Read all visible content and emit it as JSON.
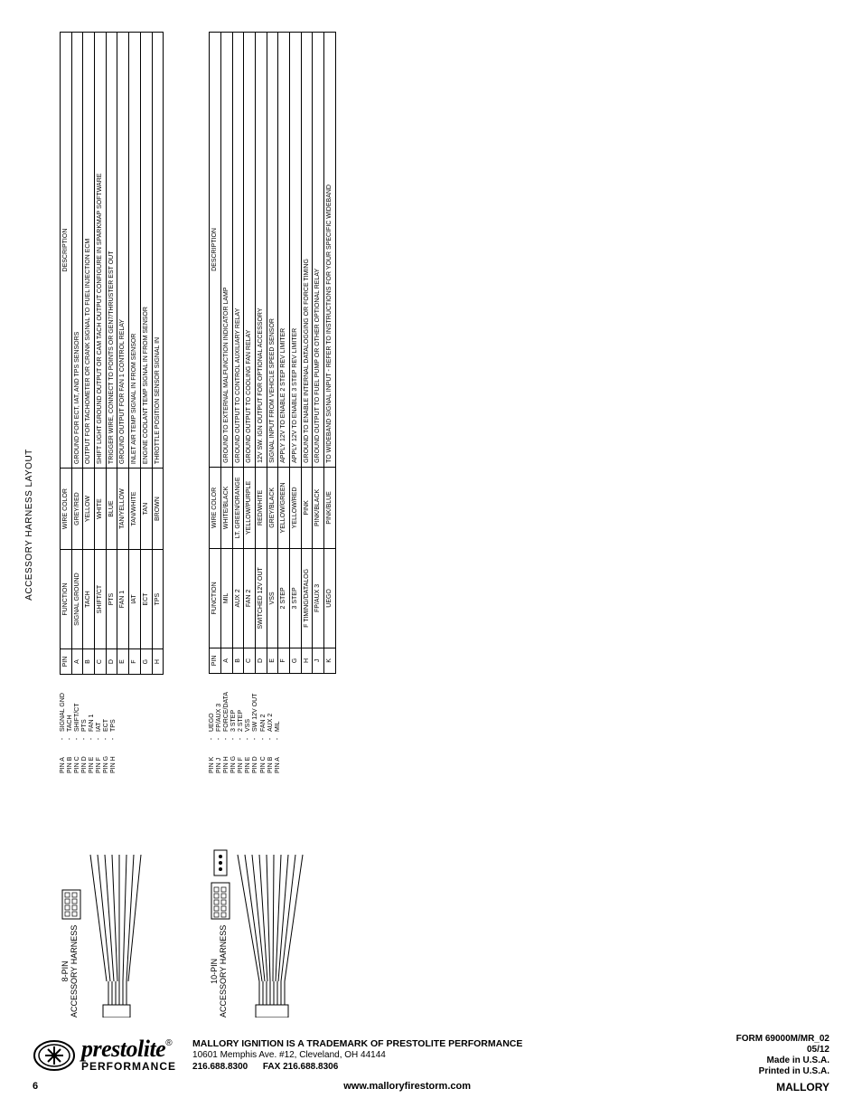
{
  "page_title": "ACCESSORY HARNESS LAYOUT",
  "colors": {
    "text": "#000000",
    "bg": "#ffffff",
    "border": "#000000"
  },
  "harness8": {
    "label_line1": "8-PIN",
    "label_line2": "ACCESSORY HARNESS",
    "legend": [
      {
        "pin": "PIN A",
        "func": "SIGNAL GND"
      },
      {
        "pin": "PIN B",
        "func": "TACH"
      },
      {
        "pin": "PIN C",
        "func": "SHIFT/CT"
      },
      {
        "pin": "PIN D",
        "func": "PTS"
      },
      {
        "pin": "PIN E",
        "func": "FAN 1"
      },
      {
        "pin": "PIN F",
        "func": "IAT"
      },
      {
        "pin": "PIN G",
        "func": "ECT"
      },
      {
        "pin": "PIN H",
        "func": "TPS"
      }
    ],
    "headers": {
      "pin": "PIN",
      "function": "FUNCTION",
      "color": "WIRE COLOR",
      "desc": "DESCRIPTION"
    },
    "rows": [
      {
        "pin": "A",
        "function": "SIGNAL GROUND",
        "color": "GREY/RED",
        "desc": "GROUND FOR ECT, IAT, AND TPS SENSORS"
      },
      {
        "pin": "B",
        "function": "TACH",
        "color": "YELLOW",
        "desc": "OUTPUT FOR TACHOMETER OR CRANK SIGNAL TO FUEL INJECTION ECM"
      },
      {
        "pin": "C",
        "function": "SHIFT/CT",
        "color": "WHITE",
        "desc": "SHIFT LIGHT GROUND OUTPUT OR CAM TACH OUTPUT CONFIGURE IN SPARKMAP SOFTWARE"
      },
      {
        "pin": "D",
        "function": "PTS",
        "color": "BLUE",
        "desc": "TRIGGER WIRE, CONNECT TO POINTS OR GEN7/THRUSTER EST OUT"
      },
      {
        "pin": "E",
        "function": "FAN 1",
        "color": "TAN/YELLOW",
        "desc": "GROUND OUTPUT FOR FAN 1 CONTROL RELAY"
      },
      {
        "pin": "F",
        "function": "IAT",
        "color": "TAN/WHITE",
        "desc": "INLET AIR TEMP SIGNAL IN FROM SENSOR"
      },
      {
        "pin": "G",
        "function": "ECT",
        "color": "TAN",
        "desc": "ENGINE COOLANT TEMP SIGNAL IN FROM SENSOR"
      },
      {
        "pin": "H",
        "function": "TPS",
        "color": "BROWN",
        "desc": "THROTTLE POSITION SENSOR SIGNAL IN"
      }
    ]
  },
  "harness10": {
    "label_line1": "10-PIN",
    "label_line2": "ACCESSORY HARNESS",
    "legend": [
      {
        "pin": "PIN K",
        "func": "UEGO"
      },
      {
        "pin": "PIN J",
        "func": "FP/AUX 3"
      },
      {
        "pin": "PIN H",
        "func": "FORCE/DATA"
      },
      {
        "pin": "PIN G",
        "func": "3 STEP"
      },
      {
        "pin": "PIN F",
        "func": "2 STEP"
      },
      {
        "pin": "PIN E",
        "func": "VSS"
      },
      {
        "pin": "PIN D",
        "func": "SW 12V OUT"
      },
      {
        "pin": "PIN C",
        "func": "FAN 2"
      },
      {
        "pin": "PIN B",
        "func": "AUX 2"
      },
      {
        "pin": "PIN A",
        "func": "MIL"
      }
    ],
    "headers": {
      "pin": "PIN",
      "function": "FUNCTION",
      "color": "WIRE COLOR",
      "desc": "DESCRIPTION"
    },
    "rows": [
      {
        "pin": "A",
        "function": "MIL",
        "color": "WHITE/BLACK",
        "desc": "GROUND TO EXTERNAL MALFUNCTION INDICATOR LAMP"
      },
      {
        "pin": "B",
        "function": "AUX 2",
        "color": "LT. GREEN/ORANGE",
        "desc": "GROUND OUTPUT TO CONTROL AUXILIARY RELAY"
      },
      {
        "pin": "C",
        "function": "FAN 2",
        "color": "YELLOW/PURPLE",
        "desc": "GROUND OUTPUT TO COOLING FAN RELAY"
      },
      {
        "pin": "D",
        "function": "SWITCHED 12V OUT",
        "color": "RED/WHITE",
        "desc": "12V SW. IGN OUTPUT FOR OPTIONAL ACCESSORY"
      },
      {
        "pin": "E",
        "function": "VSS",
        "color": "GREY/BLACK",
        "desc": "SIGNAL INPUT FROM VEHICLE SPEED SENSOR"
      },
      {
        "pin": "F",
        "function": "2 STEP",
        "color": "YELLOW/GREEN",
        "desc": "APPLY 12V TO ENABLE 2 STEP REV LIMITER"
      },
      {
        "pin": "G",
        "function": "3 STEP",
        "color": "YELLOW/RED",
        "desc": "APPLY 12V TO ENABLE 3 STEP REV LIMITER"
      },
      {
        "pin": "H",
        "function": "F TIMING/DATALOG",
        "color": "PINK",
        "desc": "GROUND TO ENABLE INTERNAL DATALOGGING OR FORCE TIMING"
      },
      {
        "pin": "J",
        "function": "FP/AUX 3",
        "color": "PINK/BLACK",
        "desc": "GROUND OUTPUT TO FUEL PUMP OR OTHER OPTIONAL RELAY"
      },
      {
        "pin": "K",
        "function": "UEGO",
        "color": "PINK/BLUE",
        "desc": "TO WIDEBAND SIGNAL INPUT - REFER TO INSTRUCTIONS FOR YOUR SPECIFIC WIDEBAND"
      }
    ]
  },
  "footer": {
    "logo_top": "prestolite",
    "logo_reg": "®",
    "logo_bottom": "PERFORMANCE",
    "mid_line1": "MALLORY IGNITION IS A TRADEMARK OF PRESTOLITE PERFORMANCE",
    "mid_line2": "10601 Memphis Ave. #12, Cleveland, OH 44144",
    "mid_line3_a": "216.688.8300",
    "mid_line3_b": "FAX 216.688.8306",
    "right_form": "FORM 69000M/MR_02",
    "right_date": "05/12",
    "right_made": "Made in U.S.A.",
    "right_printed": "Printed in U.S.A.",
    "bar_page": "6",
    "bar_url": "www.malloryfirestorm.com",
    "bar_brand": "MALLORY"
  }
}
